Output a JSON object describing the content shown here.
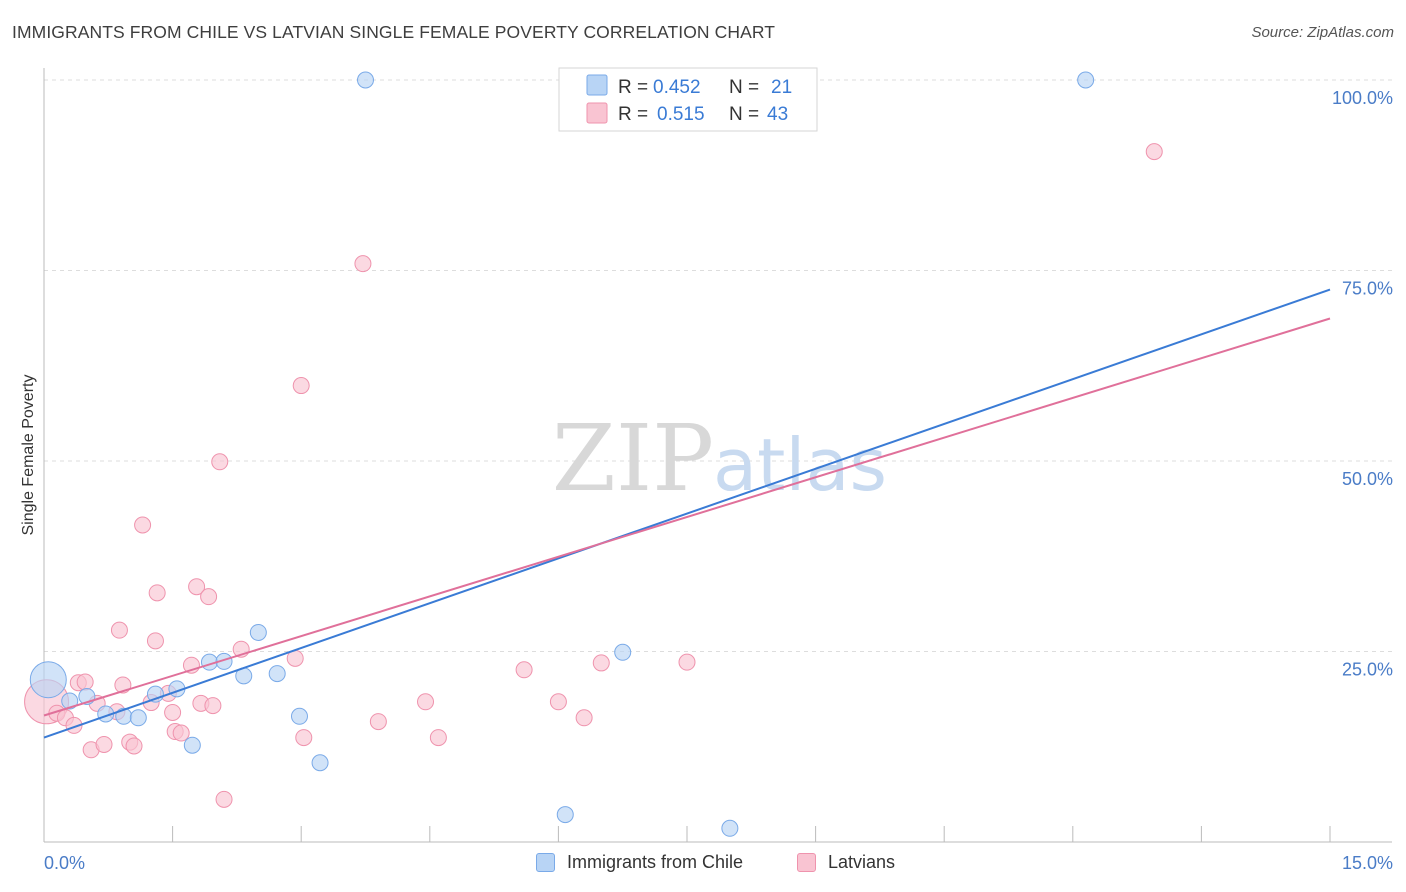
{
  "header": {
    "title": "IMMIGRANTS FROM CHILE VS LATVIAN SINGLE FEMALE POVERTY CORRELATION CHART",
    "source": "Source: ZipAtlas.com"
  },
  "watermark": {
    "part1": "ZIP",
    "part2": "atlas"
  },
  "colors": {
    "chile_fill": "#b8d4f5",
    "chile_stroke": "#7aaae8",
    "chile_line": "#3a7bd5",
    "latvian_fill": "#f9c4d2",
    "latvian_stroke": "#ef93ad",
    "latvian_line": "#e0709a",
    "axis_text": "#4a7cc7",
    "grid": "#dddddd"
  },
  "legend": {
    "rows": [
      {
        "r_label": "R =",
        "r_value": "0.452",
        "n_label": "N =",
        "n_value": "21"
      },
      {
        "r_label": "R =",
        "r_value": "0.515",
        "n_label": "N =",
        "n_value": "43"
      }
    ]
  },
  "bottom_legend": {
    "series1": "Immigrants from Chile",
    "series2": "Latvians"
  },
  "chart_data": {
    "type": "scatter",
    "title": "IMMIGRANTS FROM CHILE VS LATVIAN SINGLE FEMALE POVERTY CORRELATION CHART",
    "xlabel": "",
    "ylabel": "Single Female Poverty",
    "xlim": [
      0,
      15
    ],
    "ylim": [
      0,
      100
    ],
    "x_ticks": [
      0,
      1.5,
      3,
      4.5,
      6,
      7.5,
      9,
      10.5,
      12,
      13.5,
      15
    ],
    "x_tick_labels": [
      {
        "value": 0,
        "label": "0.0%"
      },
      {
        "value": 15,
        "label": "15.0%"
      }
    ],
    "y_tick_labels": [
      {
        "value": 25,
        "label": "25.0%"
      },
      {
        "value": 50,
        "label": "50.0%"
      },
      {
        "value": 75,
        "label": "75.0%"
      },
      {
        "value": 100,
        "label": "100.0%"
      }
    ],
    "series": [
      {
        "name": "Immigrants from Chile",
        "r": 0.452,
        "n": 21,
        "trend": {
          "x": [
            0,
            15
          ],
          "y": [
            13.7,
            72.5
          ]
        },
        "points": [
          {
            "x": 0.05,
            "y": 21.3,
            "big": true
          },
          {
            "x": 0.5,
            "y": 19.1
          },
          {
            "x": 0.3,
            "y": 18.5
          },
          {
            "x": 0.72,
            "y": 16.8
          },
          {
            "x": 0.93,
            "y": 16.5
          },
          {
            "x": 1.1,
            "y": 16.3
          },
          {
            "x": 1.3,
            "y": 19.4
          },
          {
            "x": 1.55,
            "y": 20.1
          },
          {
            "x": 1.73,
            "y": 12.7
          },
          {
            "x": 1.93,
            "y": 23.6
          },
          {
            "x": 2.1,
            "y": 23.7
          },
          {
            "x": 2.33,
            "y": 21.8
          },
          {
            "x": 2.5,
            "y": 27.5
          },
          {
            "x": 2.72,
            "y": 22.1
          },
          {
            "x": 2.98,
            "y": 16.5
          },
          {
            "x": 3.22,
            "y": 10.4
          },
          {
            "x": 3.75,
            "y": 100.0
          },
          {
            "x": 6.75,
            "y": 24.9
          },
          {
            "x": 6.08,
            "y": 3.6
          },
          {
            "x": 8.0,
            "y": 1.8
          },
          {
            "x": 12.15,
            "y": 100.0
          }
        ]
      },
      {
        "name": "Latvians",
        "r": 0.515,
        "n": 43,
        "trend": {
          "x": [
            0,
            15
          ],
          "y": [
            16.6,
            68.7
          ]
        },
        "points": [
          {
            "x": 0.03,
            "y": 18.4,
            "big": true
          },
          {
            "x": 0.15,
            "y": 16.9
          },
          {
            "x": 0.25,
            "y": 16.3
          },
          {
            "x": 0.35,
            "y": 15.3
          },
          {
            "x": 0.4,
            "y": 20.9
          },
          {
            "x": 0.48,
            "y": 21.0
          },
          {
            "x": 0.55,
            "y": 12.1
          },
          {
            "x": 0.62,
            "y": 18.2
          },
          {
            "x": 0.7,
            "y": 12.8
          },
          {
            "x": 0.85,
            "y": 17.1
          },
          {
            "x": 0.88,
            "y": 27.8
          },
          {
            "x": 0.92,
            "y": 20.6
          },
          {
            "x": 1.0,
            "y": 13.1
          },
          {
            "x": 1.05,
            "y": 12.6
          },
          {
            "x": 1.15,
            "y": 41.6
          },
          {
            "x": 1.25,
            "y": 18.3
          },
          {
            "x": 1.3,
            "y": 26.4
          },
          {
            "x": 1.32,
            "y": 32.7
          },
          {
            "x": 1.45,
            "y": 19.5
          },
          {
            "x": 1.5,
            "y": 17.0
          },
          {
            "x": 1.53,
            "y": 14.5
          },
          {
            "x": 1.6,
            "y": 14.3
          },
          {
            "x": 1.72,
            "y": 23.2
          },
          {
            "x": 1.78,
            "y": 33.5
          },
          {
            "x": 1.83,
            "y": 18.2
          },
          {
            "x": 1.92,
            "y": 32.2
          },
          {
            "x": 1.97,
            "y": 17.9
          },
          {
            "x": 2.1,
            "y": 5.6
          },
          {
            "x": 2.05,
            "y": 49.9
          },
          {
            "x": 2.3,
            "y": 25.3
          },
          {
            "x": 2.93,
            "y": 24.1
          },
          {
            "x": 3.0,
            "y": 59.9
          },
          {
            "x": 3.03,
            "y": 13.7
          },
          {
            "x": 3.72,
            "y": 75.9
          },
          {
            "x": 3.9,
            "y": 15.8
          },
          {
            "x": 4.45,
            "y": 18.4
          },
          {
            "x": 4.6,
            "y": 13.7
          },
          {
            "x": 5.6,
            "y": 22.6
          },
          {
            "x": 6.0,
            "y": 18.4
          },
          {
            "x": 6.5,
            "y": 23.5
          },
          {
            "x": 7.5,
            "y": 23.6
          },
          {
            "x": 12.95,
            "y": 90.6
          },
          {
            "x": 6.3,
            "y": 16.3
          }
        ]
      }
    ]
  }
}
